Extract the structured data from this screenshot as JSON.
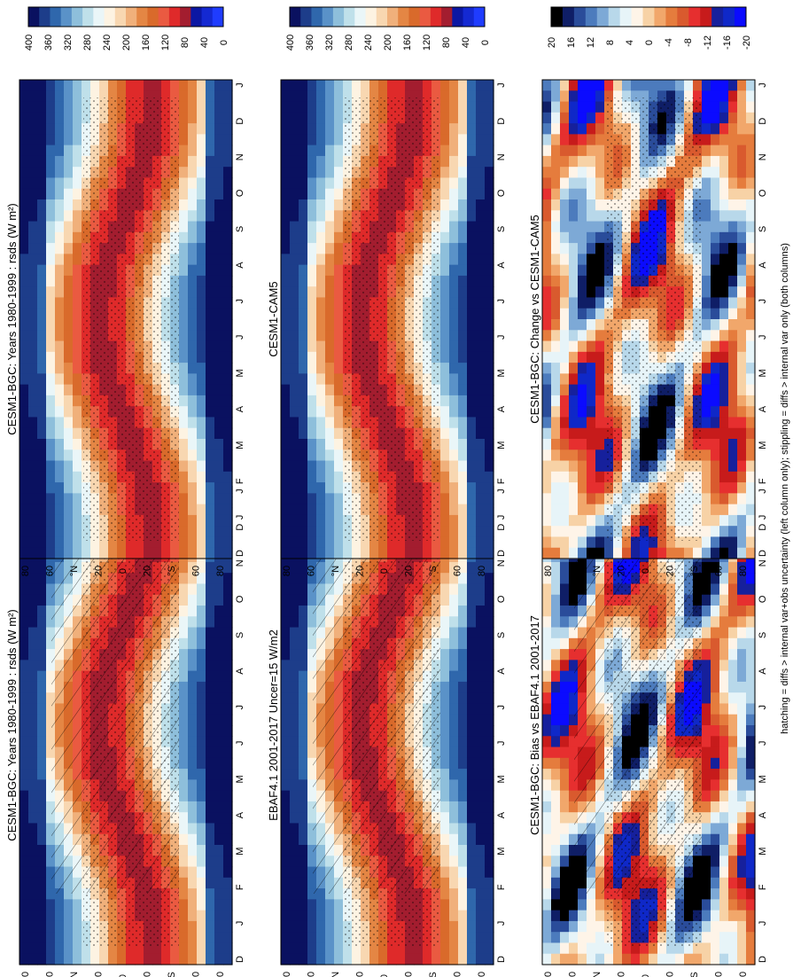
{
  "figure": {
    "footnote": "hatching = diffs > internal var+obs uncertainty (left column only); stippling = diffs > internal var only (both columns)",
    "lat_ticks": [
      "80",
      "60",
      "°N",
      "20",
      "0",
      "20",
      "°S",
      "60",
      "80"
    ],
    "month_ticks": [
      "D",
      "J",
      "F",
      "M",
      "A",
      "M",
      "J",
      "J",
      "A",
      "S",
      "O",
      "N",
      "D",
      "J"
    ],
    "colors": {
      "absolute_scale": [
        "#0a1160",
        "#1d3d8a",
        "#2f67ac",
        "#5a92c8",
        "#8ebfdb",
        "#bfe0ea",
        "#eaf6f8",
        "#fdf3e2",
        "#f8d7b1",
        "#f0b07b",
        "#e48644",
        "#d96a2b",
        "#ea5a41",
        "#df2a2a",
        "#a31d2f",
        "#0b17a3",
        "#1429d2",
        "#1f3cff"
      ],
      "difference_scale": [
        "#000000",
        "#0f1e66",
        "#2a4c9a",
        "#4c7bbd",
        "#7da9d6",
        "#b8d8ea",
        "#e7f4f8",
        "#fef4e8",
        "#f7d2a6",
        "#f1a76b",
        "#e57c3d",
        "#d95a2e",
        "#e62f2f",
        "#c71b1b",
        "#16209c",
        "#0f28c8",
        "#0b0bff"
      ]
    }
  },
  "chart_data": [
    {
      "type": "heatmap",
      "title": "CESM1-BGC: Years 1980-1999 : rsds (W m²)",
      "variable": "rsds",
      "scale_kind": "absolute",
      "colorbar": {
        "ticks": [
          "400",
          "360",
          "320",
          "280",
          "240",
          "200",
          "160",
          "120",
          "80",
          "40",
          "0"
        ],
        "range": [
          0,
          400
        ]
      },
      "hatching": true,
      "stippling": true
    },
    {
      "type": "heatmap",
      "title": "CESM1-BGC: Years 1980-1999 : rsds (W m²)",
      "variable": "rsds",
      "scale_kind": "absolute",
      "colorbar": {
        "ticks": [
          "400",
          "360",
          "320",
          "280",
          "240",
          "200",
          "160",
          "120",
          "80",
          "40",
          "0"
        ],
        "range": [
          0,
          400
        ]
      },
      "hatching": false,
      "stippling": true
    },
    {
      "type": "heatmap",
      "title": "EBAF4.1 2001-2017 Uncer=15 W/m2",
      "scale_kind": "absolute",
      "colorbar": {
        "ticks": [
          "400",
          "360",
          "320",
          "280",
          "240",
          "200",
          "160",
          "120",
          "80",
          "40",
          "0"
        ],
        "range": [
          0,
          400
        ]
      },
      "hatching": true,
      "stippling": true
    },
    {
      "type": "heatmap",
      "title": "CESM1-CAM5",
      "scale_kind": "absolute",
      "colorbar": {
        "ticks": [
          "400",
          "360",
          "320",
          "280",
          "240",
          "200",
          "160",
          "120",
          "80",
          "40",
          "0"
        ],
        "range": [
          0,
          400
        ]
      },
      "hatching": false,
      "stippling": true
    },
    {
      "type": "heatmap",
      "title": "CESM1-BGC: Bias vs EBAF4.1 2001-2017",
      "scale_kind": "difference",
      "colorbar": {
        "ticks": [
          "20",
          "16",
          "12",
          "8",
          "4",
          "0",
          "-4",
          "-8",
          "-12",
          "-16",
          "-20"
        ],
        "range": [
          -20,
          20
        ]
      },
      "hatching": true,
      "stippling": true
    },
    {
      "type": "heatmap",
      "title": "CESM1-BGC: Change vs CESM1-CAM5",
      "scale_kind": "difference",
      "colorbar": {
        "ticks": [
          "20",
          "16",
          "12",
          "8",
          "4",
          "0",
          "-4",
          "-8",
          "-12",
          "-16",
          "-20"
        ],
        "range": [
          -20,
          20
        ]
      },
      "hatching": false,
      "stippling": true
    }
  ]
}
